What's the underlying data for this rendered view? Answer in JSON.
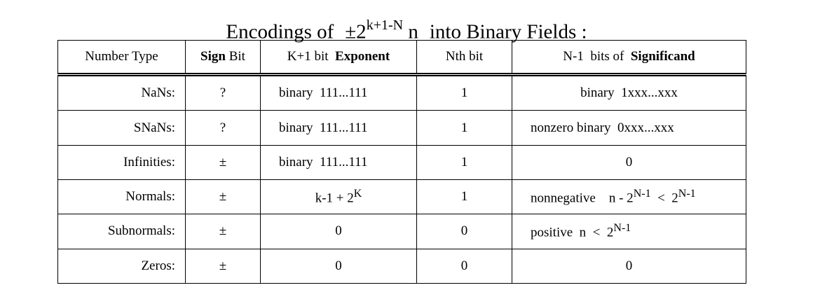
{
  "title": {
    "prefix": "Encodings of",
    "pm": "±2",
    "exp": "k+1-N",
    "n": "n",
    "suffix": "into Binary Fields :"
  },
  "headers": {
    "number_type": "Number Type",
    "sign_bold": "Sign",
    "sign_rest": " Bit",
    "exponent_pre": "K+1 bit  ",
    "exponent_bold": "Exponent",
    "nth_bit": "Nth bit",
    "significand_pre": "N-1  bits of  ",
    "significand_bold": "Significand"
  },
  "rows": [
    {
      "type": "NaNs:",
      "sign": "?",
      "exponent": "binary  111...111",
      "nth": "1",
      "significand": "binary  1xxx...xxx"
    },
    {
      "type": "SNaNs:",
      "sign": "?",
      "exponent": "binary  111...111",
      "nth": "1",
      "significand": "nonzero binary  0xxx...xxx"
    },
    {
      "type": "Infinities:",
      "sign": "±",
      "exponent": "binary  111...111",
      "nth": "1",
      "significand": "0"
    },
    {
      "type": "Normals:",
      "sign": "±",
      "exponent_base": "k-1 + 2",
      "exponent_sup": "K",
      "nth": "1",
      "sig_a": "nonnegative    n - 2",
      "sig_a_sup": "N-1",
      "sig_b": "  <  2",
      "sig_b_sup": "N-1"
    },
    {
      "type": "Subnormals:",
      "sign": "±",
      "exponent": "0",
      "nth": "0",
      "sig_a": "positive  n  <  2",
      "sig_a_sup": "N-1"
    },
    {
      "type": "Zeros:",
      "sign": "±",
      "exponent": "0",
      "nth": "0",
      "significand": "0"
    }
  ]
}
